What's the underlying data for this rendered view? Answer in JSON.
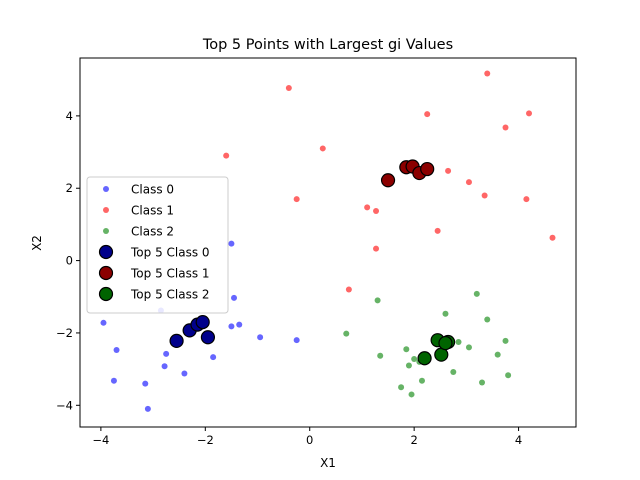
{
  "chart_data": {
    "type": "scatter",
    "title": "Top 5 Points with Largest gi Values",
    "xlabel": "X1",
    "ylabel": "X2",
    "xlim": [
      -4.4,
      5.1
    ],
    "ylim": [
      -4.6,
      5.6
    ],
    "xticks": [
      -4,
      -2,
      0,
      2,
      4
    ],
    "yticks": [
      -4,
      -2,
      0,
      2,
      4
    ],
    "grid": false,
    "legend_position": "center-left",
    "series": [
      {
        "name": "Class 0",
        "color": "#0000ff",
        "marker": "small",
        "points": [
          [
            -3.95,
            -1.72
          ],
          [
            -3.7,
            -2.47
          ],
          [
            -3.75,
            -3.32
          ],
          [
            -3.15,
            -3.4
          ],
          [
            -3.1,
            -4.1
          ],
          [
            -2.85,
            -1.38
          ],
          [
            -2.75,
            -2.58
          ],
          [
            -2.78,
            -2.92
          ],
          [
            -2.4,
            -3.12
          ],
          [
            -1.85,
            -2.67
          ],
          [
            -1.5,
            -1.82
          ],
          [
            -1.35,
            -1.77
          ],
          [
            -1.45,
            -1.03
          ],
          [
            -1.5,
            0.47
          ],
          [
            -0.95,
            -2.12
          ],
          [
            -0.25,
            -2.2
          ]
        ]
      },
      {
        "name": "Class 1",
        "color": "#ff0000",
        "marker": "small",
        "points": [
          [
            -0.4,
            4.77
          ],
          [
            0.25,
            3.1
          ],
          [
            -1.6,
            2.9
          ],
          [
            -0.25,
            1.7
          ],
          [
            1.1,
            1.47
          ],
          [
            1.27,
            1.37
          ],
          [
            1.27,
            0.33
          ],
          [
            0.75,
            -0.8
          ],
          [
            2.25,
            4.05
          ],
          [
            2.65,
            2.48
          ],
          [
            2.45,
            0.82
          ],
          [
            3.05,
            2.17
          ],
          [
            3.35,
            1.8
          ],
          [
            3.4,
            5.17
          ],
          [
            3.75,
            3.68
          ],
          [
            4.2,
            4.07
          ],
          [
            4.15,
            1.7
          ],
          [
            4.65,
            0.63
          ]
        ]
      },
      {
        "name": "Class 2",
        "color": "#008000",
        "marker": "small",
        "points": [
          [
            0.7,
            -2.02
          ],
          [
            1.3,
            -1.1
          ],
          [
            1.35,
            -2.63
          ],
          [
            1.75,
            -3.5
          ],
          [
            1.85,
            -2.45
          ],
          [
            1.9,
            -2.9
          ],
          [
            1.95,
            -3.7
          ],
          [
            2.0,
            -2.72
          ],
          [
            2.1,
            -2.8
          ],
          [
            2.15,
            -3.32
          ],
          [
            2.6,
            -1.47
          ],
          [
            2.75,
            -3.08
          ],
          [
            2.85,
            -2.25
          ],
          [
            3.05,
            -2.4
          ],
          [
            3.2,
            -0.92
          ],
          [
            3.3,
            -3.37
          ],
          [
            3.4,
            -1.63
          ],
          [
            3.6,
            -2.6
          ],
          [
            3.75,
            -2.22
          ],
          [
            3.8,
            -3.17
          ]
        ]
      },
      {
        "name": "Top 5 Class 0",
        "color": "#00008b",
        "marker": "large",
        "points": [
          [
            -2.55,
            -2.22
          ],
          [
            -2.3,
            -1.93
          ],
          [
            -2.15,
            -1.77
          ],
          [
            -2.05,
            -1.7
          ],
          [
            -1.95,
            -2.12
          ]
        ]
      },
      {
        "name": "Top 5 Class 1",
        "color": "#8b0000",
        "marker": "large",
        "points": [
          [
            1.5,
            2.22
          ],
          [
            1.85,
            2.58
          ],
          [
            1.97,
            2.6
          ],
          [
            2.1,
            2.42
          ],
          [
            2.25,
            2.53
          ]
        ]
      },
      {
        "name": "Top 5 Class 2",
        "color": "#006400",
        "marker": "large",
        "points": [
          [
            2.2,
            -2.7
          ],
          [
            2.45,
            -2.2
          ],
          [
            2.52,
            -2.6
          ],
          [
            2.65,
            -2.25
          ],
          [
            2.6,
            -2.28
          ]
        ]
      }
    ]
  }
}
